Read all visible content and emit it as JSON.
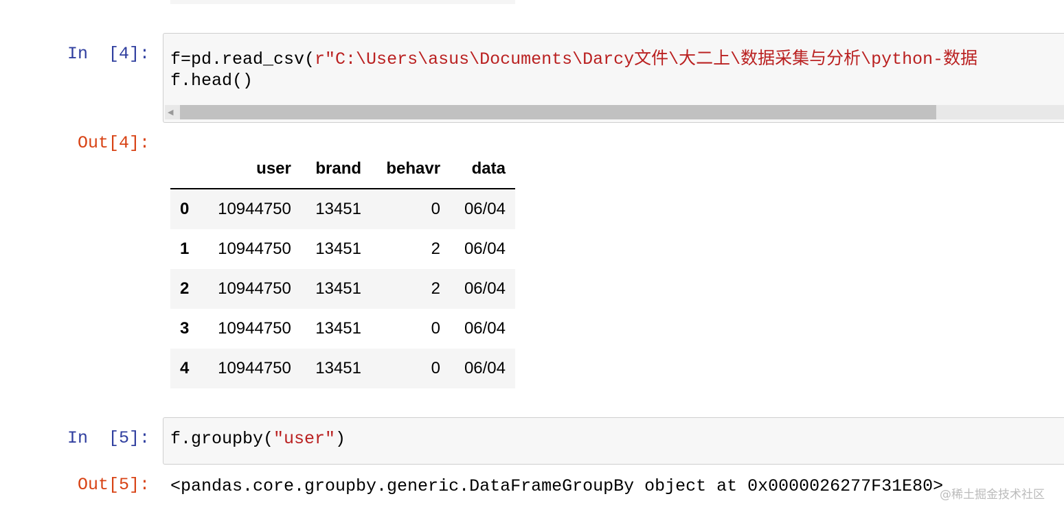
{
  "cells": [
    {
      "in_prompt": "In  [4]:",
      "code_line1_a": "f=pd.read_csv(",
      "code_line1_str": "r\"C:\\Users\\asus\\Documents\\Darcy文件\\大二上\\数据采集与分析\\python-数据",
      "code_line2": "f.head()",
      "out_prompt": "Out[4]:"
    },
    {
      "in_prompt": "In  [5]:",
      "code_a": "f.groupby(",
      "code_str": "\"user\"",
      "code_b": ")",
      "out_prompt": "Out[5]:",
      "output_text": "<pandas.core.groupby.generic.DataFrameGroupBy object at 0x0000026277F31E80>"
    }
  ],
  "table": {
    "columns": [
      "",
      "user",
      "brand",
      "behavr",
      "data"
    ],
    "rows": [
      [
        "0",
        "10944750",
        "13451",
        "0",
        "06/04"
      ],
      [
        "1",
        "10944750",
        "13451",
        "2",
        "06/04"
      ],
      [
        "2",
        "10944750",
        "13451",
        "2",
        "06/04"
      ],
      [
        "3",
        "10944750",
        "13451",
        "0",
        "06/04"
      ],
      [
        "4",
        "10944750",
        "13451",
        "0",
        "06/04"
      ]
    ]
  },
  "watermark": "@稀土掘金技术社区"
}
